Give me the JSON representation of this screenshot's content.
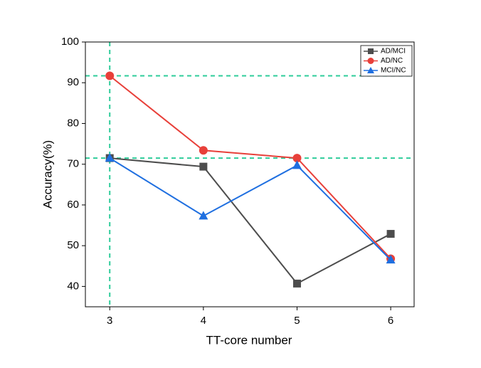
{
  "chart_data": {
    "type": "line",
    "x_label": "TT-core number",
    "y_label": "Accuracy(%)",
    "x": [
      3,
      4,
      5,
      6
    ],
    "series": [
      {
        "name": "AD/MCI",
        "color": "#4d4d4d",
        "marker": "square",
        "values": [
          71.5,
          69.4,
          40.7,
          52.9
        ]
      },
      {
        "name": "AD/NC",
        "color": "#e8403a",
        "marker": "circle",
        "values": [
          91.7,
          73.4,
          71.5,
          46.8
        ]
      },
      {
        "name": "MCI/NC",
        "color": "#1f6fe0",
        "marker": "triangle",
        "values": [
          71.5,
          57.3,
          69.7,
          46.5
        ]
      }
    ],
    "xlim": [
      2.74,
      6.25
    ],
    "ylim": [
      35,
      100
    ],
    "xticks": [
      3,
      4,
      5,
      6
    ],
    "yticks": [
      40,
      50,
      60,
      70,
      80,
      90,
      100
    ],
    "reference_lines": {
      "color": "#2ecc9a",
      "y": [
        91.7,
        71.5
      ],
      "x": [
        3
      ]
    },
    "legend": "upper-right"
  }
}
